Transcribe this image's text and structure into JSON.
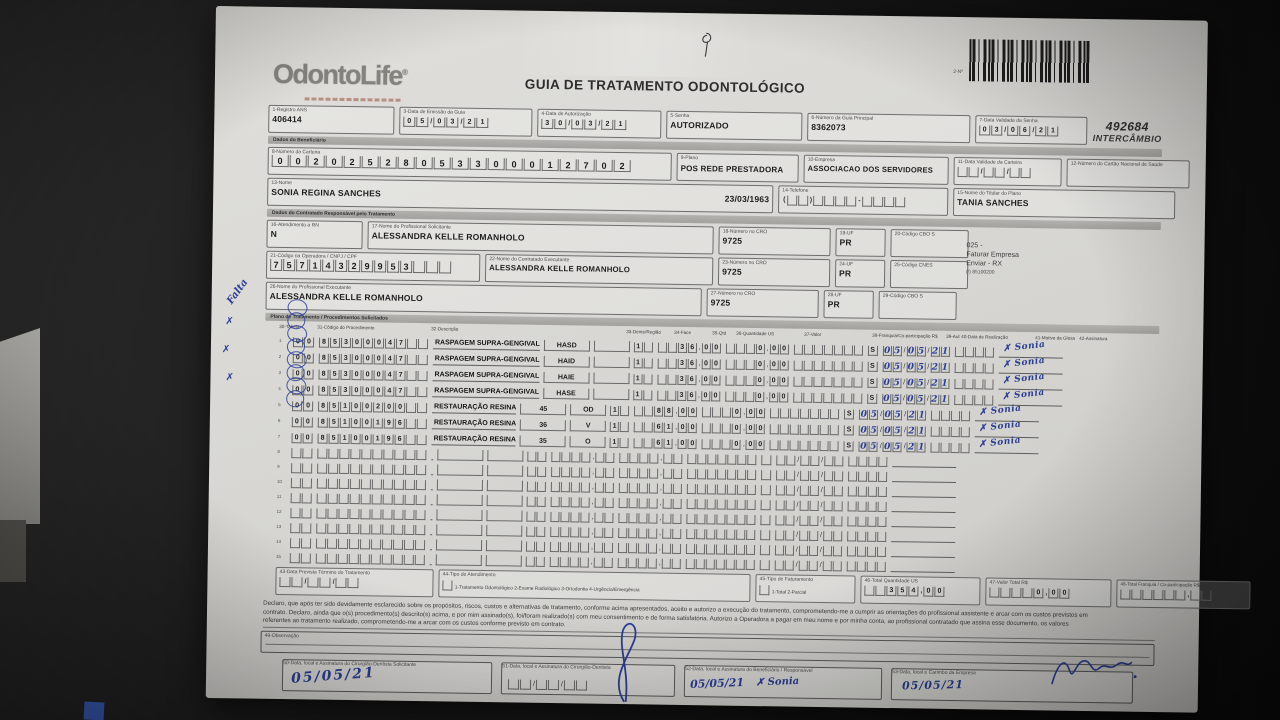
{
  "colors": {
    "ink_blue": "#2c3e96",
    "paper": "#d8d7d3",
    "print": "#2e2e2e"
  },
  "logo": {
    "name": "OdontoLife",
    "reg": "®"
  },
  "title": "GUIA DE TRATAMENTO ODONTOLÓGICO",
  "stamp": {
    "barcode_label": "2-Nº",
    "number": "492684",
    "network": "INTERCÂMBIO"
  },
  "sections": {
    "beneficiario": "Dados do Beneficiário",
    "contratado": "Dados do Contratado Responsável pelo Tratamento",
    "plano": "Plano de Tratamento / Procedimentos Solicitados"
  },
  "fields": {
    "f1": {
      "label": "1-Registro ANS",
      "value": "406414"
    },
    "f3": {
      "label": "3-Data de Emissão da Guia",
      "comb": "05/03/21"
    },
    "f4": {
      "label": "4-Data de Autorização",
      "comb": "30/03/21"
    },
    "f5": {
      "label": "5-Senha",
      "value": "AUTORIZADO"
    },
    "f6": {
      "label": "6-Número da Guia Principal",
      "value": "8362073"
    },
    "f7": {
      "label": "7-Data Validade da Senha",
      "comb": "03/06/21"
    },
    "f8": {
      "label": "8-Número da Carteira",
      "comb": "00202528053300012702"
    },
    "f9": {
      "label": "9-Plano",
      "value": "POS REDE PRESTADORA"
    },
    "f10": {
      "label": "10-Empresa",
      "value": "ASSOCIACAO DOS SERVIDORES"
    },
    "f11": {
      "label": "11-Data Validade da Carteira",
      "comb": "  /  /  "
    },
    "f12": {
      "label": "12-Número do Cartão Nacional de Saúde",
      "value": ""
    },
    "f13": {
      "label": "13-Nome",
      "value": "SONIA REGINA SANCHES",
      "birth": "23/03/1963"
    },
    "f14": {
      "label": "14-Telefone",
      "comb": "(  )    -    "
    },
    "f15": {
      "label": "15-Nome do Titular do Plano",
      "value": "TANIA SANCHES"
    },
    "f16": {
      "label": "16-Atendimento a RN",
      "value": "N"
    },
    "f17": {
      "label": "17-Nome do Profissional Solicitante",
      "value": "ALESSANDRA KELLE ROMANHOLO"
    },
    "f18": {
      "label": "18-Número no CRO",
      "value": "9725"
    },
    "f19": {
      "label": "19-UF",
      "value": "PR"
    },
    "f20": {
      "label": "20-Código CBO S",
      "value": ""
    },
    "f21": {
      "label": "21-Código na Operadora / CNPJ / CPF",
      "comb": "75714329953   "
    },
    "f22": {
      "label": "22-Nome do Contratado Executante",
      "value": "ALESSANDRA KELLE ROMANHOLO"
    },
    "f23": {
      "label": "23-Número no CRO",
      "value": "9725"
    },
    "f24": {
      "label": "24-UF",
      "value": "PR"
    },
    "f25": {
      "label": "25-Código CNES",
      "value": ""
    },
    "f26": {
      "label": "26-Nome do Profissional Executante",
      "value": "ALESSANDRA KELLE ROMANHOLO"
    },
    "f27": {
      "label": "27-Número no CRO",
      "value": "9725"
    },
    "f28": {
      "label": "28-UF",
      "value": "PR"
    },
    "f29": {
      "label": "29-Código CBO S",
      "value": ""
    },
    "f43": {
      "label": "43-Data Prevista Término do Tratamento",
      "comb": "  /  /  "
    },
    "f44": {
      "label": "44-Tipo de Atendimento",
      "options": "1-Tratamento Odontológico   2-Exame Radiológico   3-Ortodontia   4-Urgência/Emergência"
    },
    "f45": {
      "label": "45-Tipo de Faturamento",
      "options": "1-Total  2-Parcial"
    },
    "f46": {
      "label": "46-Total Quantidade US",
      "comb": "  354,00"
    },
    "f47": {
      "label": "47-Valor Total R$",
      "comb": "    0,00"
    },
    "f48": {
      "label": "48-Total Franquia / Co-participação R$",
      "comb": "      ,  "
    },
    "f49": {
      "label": "49-Observação"
    },
    "f50": {
      "label": "50-Data, local e Assinatura do Cirurgião-Dentista Solicitante",
      "hw_date": "05/05/21"
    },
    "f51": {
      "label": "51-Data, local e Assinatura do Cirurgião-Dentista",
      "comb": "  /  /  "
    },
    "f52": {
      "label": "52-Data, local e Assinatura do Beneficiário / Responsável",
      "hw_date": "05/05/21",
      "hw_name": "✗ Sonia"
    },
    "f53": {
      "label": "53-Data, local e Carimbo da Empresa",
      "hw_date": "05/05/21"
    }
  },
  "side_note": {
    "l1": "025 -",
    "l2": "Faturar Empresa",
    "l3": "Enviar - RX",
    "l4": "(!) 85100200"
  },
  "table": {
    "headers": {
      "h30": "30-Tabela",
      "h31": "31-Código do Procedimento",
      "h32": "32-Descrição",
      "h33": "33-Dente/Região",
      "h34": "34-Face",
      "h35": "35-Qtd",
      "h36": "36-Quantidade US",
      "h37": "37-Valor",
      "h38": "38-Franquia/Co-participação R$",
      "h39": "39-Aut",
      "h40": "40-Data de Realização",
      "h41": "41-Motivo da Glosa",
      "h42": "42-Assinatura"
    },
    "rows": [
      {
        "num": "1",
        "tabela": "00",
        "codigo": "85300047  ",
        "desc": "RASPAGEM SUPRA-GENGIVAL",
        "dente": "HASD",
        "face": "",
        "qtd": "1 ",
        "qus": "  36,00",
        "valor": "   0,00",
        "franquia": "       ",
        "aut": "S",
        "data": "05/05/21",
        "glosa": "    ",
        "assin": "✗ Sonia"
      },
      {
        "num": "2",
        "tabela": "00",
        "codigo": "85300047  ",
        "desc": "RASPAGEM SUPRA-GENGIVAL",
        "dente": "HAID",
        "face": "",
        "qtd": "1 ",
        "qus": "  36,00",
        "valor": "   0,00",
        "franquia": "       ",
        "aut": "S",
        "data": "05/05/21",
        "glosa": "    ",
        "assin": "✗ Sonia"
      },
      {
        "num": "3",
        "tabela": "00",
        "codigo": "85300047  ",
        "desc": "RASPAGEM SUPRA-GENGIVAL",
        "dente": "HAIE",
        "face": "",
        "qtd": "1 ",
        "qus": "  36,00",
        "valor": "   0,00",
        "franquia": "       ",
        "aut": "S",
        "data": "05/05/21",
        "glosa": "    ",
        "assin": "✗ Sonia"
      },
      {
        "num": "4",
        "tabela": "00",
        "codigo": "85300047  ",
        "desc": "RASPAGEM SUPRA-GENGIVAL",
        "dente": "HASE",
        "face": "",
        "qtd": "1 ",
        "qus": "  36,00",
        "valor": "   0,00",
        "franquia": "       ",
        "aut": "S",
        "data": "05/05/21",
        "glosa": "    ",
        "assin": "✗ Sonia"
      },
      {
        "num": "5",
        "tabela": "00",
        "codigo": "85100200  ",
        "desc": "RESTAURAÇÃO RESINA",
        "dente": "45",
        "face": "OD",
        "qtd": "1 ",
        "qus": "  88,00",
        "valor": "   0,00",
        "franquia": "       ",
        "aut": "S",
        "data": "05/05/21",
        "glosa": "    ",
        "assin": "✗ Sonia"
      },
      {
        "num": "6",
        "tabela": "00",
        "codigo": "85100196  ",
        "desc": "RESTAURAÇÃO RESINA",
        "dente": "36",
        "face": "V",
        "qtd": "1 ",
        "qus": "  61,00",
        "valor": "   0,00",
        "franquia": "       ",
        "aut": "S",
        "data": "05/05/21",
        "glosa": "    ",
        "assin": "✗ Sonia"
      },
      {
        "num": "7",
        "tabela": "00",
        "codigo": "85100196  ",
        "desc": "RESTAURAÇÃO RESINA",
        "dente": "35",
        "face": "O",
        "qtd": "1 ",
        "qus": "  61,00",
        "valor": "   0,00",
        "franquia": "       ",
        "aut": "S",
        "data": "05/05/21",
        "glosa": "    ",
        "assin": "✗ Sonia"
      }
    ],
    "empty_row_numbers": [
      "8",
      "9",
      "10",
      "11",
      "12",
      "13",
      "14",
      "15"
    ]
  },
  "declaration": {
    "line1": "Declaro, que após ter sido devidamente esclarecido sobre os propósitos, riscos, custos e alternativas de tratamento, conforme acima apresentados, aceito e autorizo a execução do tratamento, comprometendo-me a cumprir as orientações do profissional assistente e arcar com os custos previstos em",
    "line2": "contrato. Declaro, ainda que o(s) procedimento(s) descrito(s) acima, e por mim assinado(s), foi/foram realizado(s) com meu consentimento e de forma satisfatória. Autorizo a Operadora a pagar em meu nome e por minha conta, ao profissional contratado que assina esse documento, os valores",
    "line3": "referentes ao tratamento realizado, comprometendo-me a arcar com os custos conforme previsto em contrato."
  },
  "annotations": {
    "falta": "Falta",
    "mark": "✗"
  }
}
